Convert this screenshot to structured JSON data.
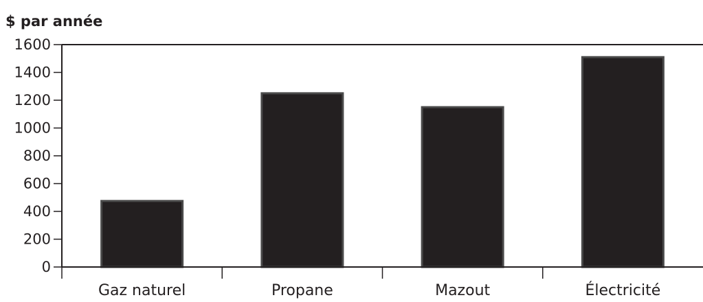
{
  "chart_data": {
    "type": "bar",
    "ylabel": "$ par année",
    "categories": [
      "Gaz naturel",
      "Propane",
      "Mazout",
      "Électricité"
    ],
    "values": [
      475,
      1250,
      1150,
      1510
    ],
    "ylim": [
      0,
      1600
    ],
    "yticks": [
      "0",
      "200",
      "400",
      "600",
      "800",
      "1000",
      "1200",
      "1400",
      "1600"
    ],
    "grid": false,
    "colors": {
      "bar": "#231f20",
      "bar_edge": "#4a4a4a",
      "axis": "#231f20"
    }
  }
}
